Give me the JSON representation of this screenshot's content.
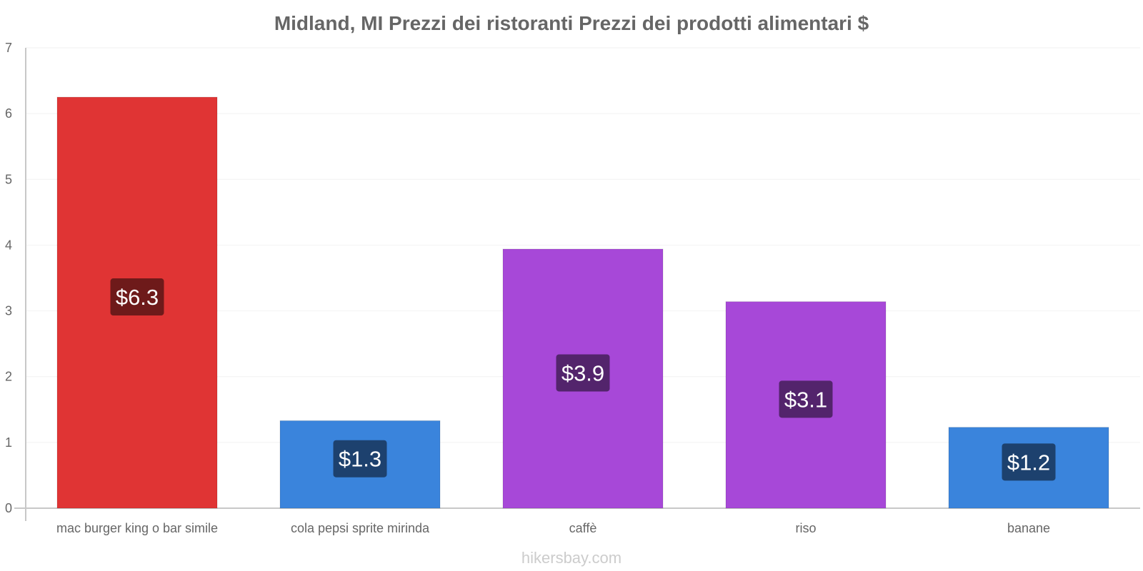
{
  "chart_data": {
    "type": "bar",
    "title": "Midland, MI Prezzi dei ristoranti Prezzi dei prodotti alimentari $",
    "categories": [
      "mac burger king o bar simile",
      "cola pepsi sprite mirinda",
      "caffè",
      "riso",
      "banane"
    ],
    "values": [
      6.25,
      1.33,
      3.94,
      3.14,
      1.23
    ],
    "value_labels": [
      "$6.3",
      "$1.3",
      "$3.9",
      "$3.1",
      "$1.2"
    ],
    "bar_colors": [
      "#e03434",
      "#3a84dc",
      "#a748d8",
      "#a748d8",
      "#3a84dc"
    ],
    "label_bg_colors": [
      "#6e1a1a",
      "#1d416e",
      "#53246c",
      "#53246c",
      "#1d416e"
    ],
    "ylim": [
      0,
      7
    ],
    "yticks": [
      "0",
      "1",
      "2",
      "3",
      "4",
      "5",
      "6",
      "7"
    ],
    "xlabel": "",
    "ylabel": "",
    "grid": true
  },
  "footer": {
    "watermark": "hikersbay.com"
  }
}
